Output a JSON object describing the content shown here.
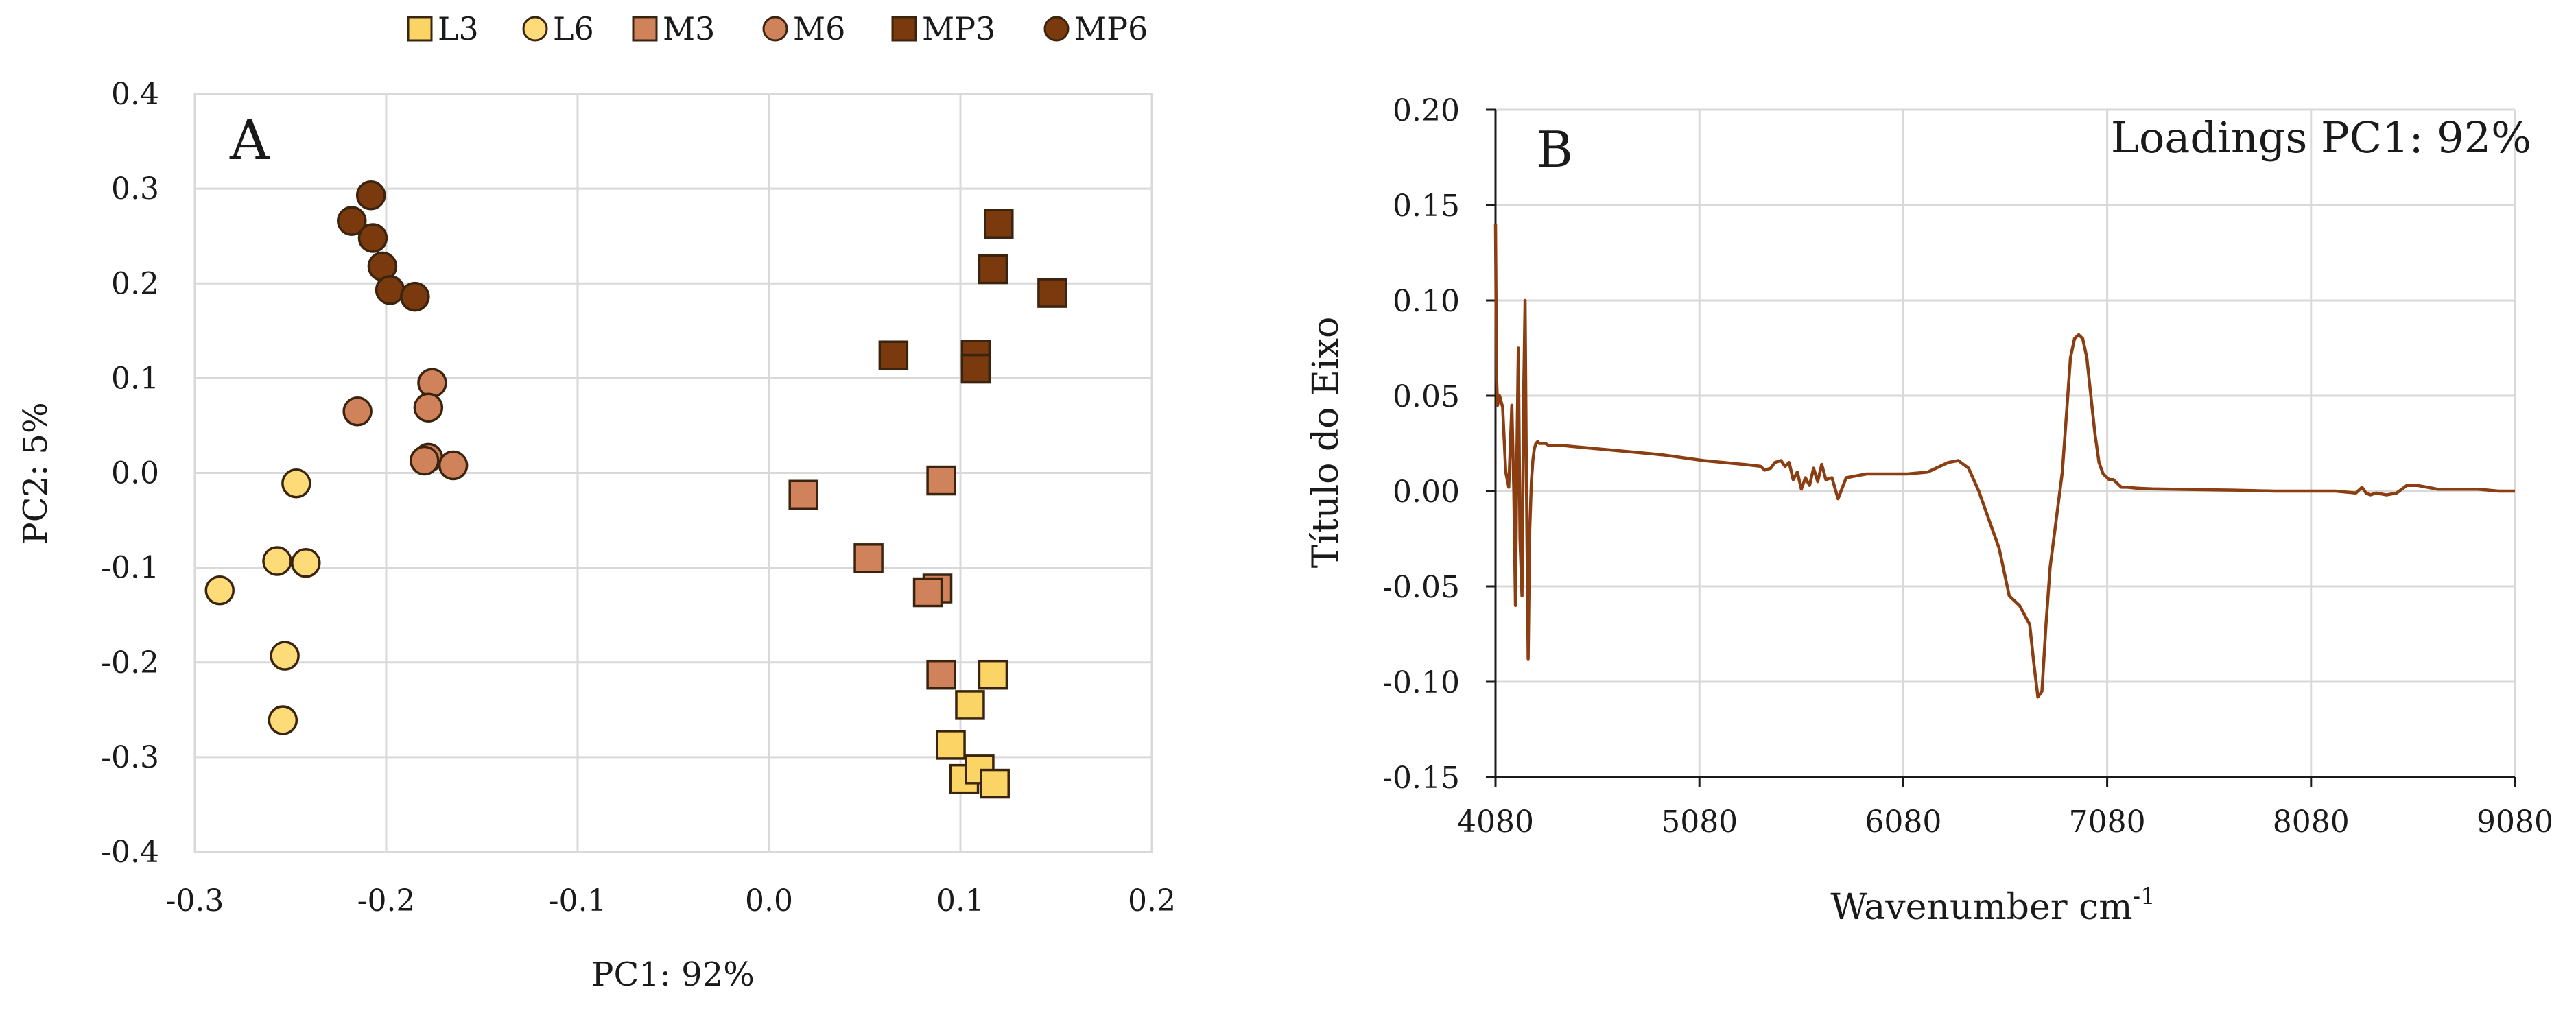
{
  "chart_data": [
    {
      "panel": "A",
      "type": "scatter",
      "xlabel": "PC1: 92%",
      "ylabel": "PC2: 5%",
      "xlim": [
        -0.3,
        0.2
      ],
      "ylim": [
        -0.4,
        0.4
      ],
      "xticks": [
        -0.3,
        -0.2,
        -0.1,
        0.0,
        0.1,
        0.2
      ],
      "yticks": [
        0.4,
        0.3,
        0.2,
        0.1,
        0.0,
        -0.1,
        -0.2,
        -0.3,
        -0.4
      ],
      "xtick_labels": [
        "-0.3",
        "-0.2",
        "-0.1",
        "0.0",
        "0.1",
        "0.2"
      ],
      "ytick_labels": [
        "0.4",
        "0.3",
        "0.2",
        "0.1",
        "0.0",
        "-0.1",
        "-0.2",
        "-0.3",
        "-0.4"
      ],
      "grid": true,
      "legend_position": "top",
      "series": [
        {
          "name": "L3",
          "marker": "square",
          "color": "#FAD464",
          "points": [
            [
              0.095,
              -0.287
            ],
            [
              0.102,
              -0.323
            ],
            [
              0.11,
              -0.313
            ],
            [
              0.118,
              -0.328
            ],
            [
              0.105,
              -0.245
            ],
            [
              0.117,
              -0.213
            ]
          ]
        },
        {
          "name": "L6",
          "marker": "circle",
          "color": "#FCDB78",
          "points": [
            [
              -0.247,
              -0.011
            ],
            [
              -0.257,
              -0.093
            ],
            [
              -0.242,
              -0.095
            ],
            [
              -0.287,
              -0.124
            ],
            [
              -0.253,
              -0.193
            ],
            [
              -0.254,
              -0.261
            ]
          ]
        },
        {
          "name": "M3",
          "marker": "square",
          "color": "#D0825A",
          "points": [
            [
              0.018,
              -0.023
            ],
            [
              0.09,
              -0.008
            ],
            [
              0.052,
              -0.09
            ],
            [
              0.088,
              -0.122
            ],
            [
              0.083,
              -0.126
            ],
            [
              0.09,
              -0.213
            ]
          ]
        },
        {
          "name": "M6",
          "marker": "circle",
          "color": "#D0825A",
          "points": [
            [
              -0.215,
              0.065
            ],
            [
              -0.176,
              0.095
            ],
            [
              -0.178,
              0.069
            ],
            [
              -0.178,
              0.016
            ],
            [
              -0.165,
              0.008
            ],
            [
              -0.18,
              0.013
            ]
          ]
        },
        {
          "name": "MP3",
          "marker": "square",
          "color": "#7A3A0E",
          "points": [
            [
              0.12,
              0.263
            ],
            [
              0.117,
              0.215
            ],
            [
              0.148,
              0.19
            ],
            [
              0.065,
              0.124
            ],
            [
              0.108,
              0.125
            ],
            [
              0.108,
              0.11
            ]
          ]
        },
        {
          "name": "MP6",
          "marker": "circle",
          "color": "#7A3A0E",
          "points": [
            [
              -0.208,
              0.293
            ],
            [
              -0.218,
              0.266
            ],
            [
              -0.207,
              0.248
            ],
            [
              -0.202,
              0.218
            ],
            [
              -0.198,
              0.193
            ],
            [
              -0.185,
              0.186
            ]
          ]
        }
      ]
    },
    {
      "panel": "B",
      "type": "line",
      "xlabel": "Wavenumber cm",
      "xlabel_sup": "-1",
      "ylabel": "Título do Eixo",
      "annotation": "Loadings  PC1: 92%",
      "xlim": [
        4080,
        9080
      ],
      "ylim": [
        -0.15,
        0.2
      ],
      "xticks": [
        4080,
        5080,
        6080,
        7080,
        8080,
        9080
      ],
      "yticks": [
        0.2,
        0.15,
        0.1,
        0.05,
        0.0,
        -0.05,
        -0.1,
        -0.15
      ],
      "xtick_labels": [
        "4080",
        "5080",
        "6080",
        "7080",
        "8080",
        "9080"
      ],
      "ytick_labels": [
        "0.20",
        "0.15",
        "0.10",
        "0.05",
        "0.00",
        "-0.05",
        "-0.10",
        "-0.15"
      ],
      "grid": true,
      "color": "#8B3E11",
      "series": [
        {
          "name": "Loadings PC1",
          "x": [
            4080,
            4085,
            4090,
            4100,
            4115,
            4130,
            4145,
            4160,
            4170,
            4178,
            4185,
            4192,
            4200,
            4210,
            4218,
            4225,
            4232,
            4240,
            4248,
            4256,
            4263,
            4270,
            4278,
            4287,
            4294,
            4300,
            4308,
            4315,
            4325,
            4340,
            4360,
            4400,
            4500,
            4700,
            4900,
            5100,
            5300,
            5380,
            5400,
            5430,
            5450,
            5480,
            5500,
            5520,
            5540,
            5560,
            5580,
            5600,
            5620,
            5640,
            5660,
            5680,
            5700,
            5730,
            5760,
            5800,
            5900,
            6000,
            6100,
            6200,
            6300,
            6350,
            6400,
            6450,
            6500,
            6550,
            6600,
            6650,
            6700,
            6720,
            6740,
            6760,
            6780,
            6800,
            6830,
            6860,
            6880,
            6900,
            6920,
            6940,
            6960,
            6980,
            7000,
            7020,
            7040,
            7060,
            7080,
            7090,
            7100,
            7110,
            7120,
            7130,
            7140,
            7150,
            7160,
            7180,
            7200,
            7220,
            7250,
            7300,
            7400,
            7500,
            7700,
            7900,
            8100,
            8200,
            8300,
            8330,
            8350,
            8370,
            8400,
            8450,
            8500,
            8550,
            8600,
            8650,
            8700,
            8800,
            8900,
            9000,
            9080
          ],
          "y": [
            0.14,
            0.06,
            0.045,
            0.05,
            0.044,
            0.01,
            0.002,
            0.045,
            0.0,
            -0.06,
            0.02,
            0.075,
            -0.025,
            -0.055,
            0.05,
            0.1,
            0.0,
            -0.088,
            -0.02,
            0.005,
            0.016,
            0.022,
            0.025,
            0.026,
            0.025,
            0.025,
            0.025,
            0.025,
            0.025,
            0.024,
            0.024,
            0.024,
            0.023,
            0.021,
            0.019,
            0.016,
            0.014,
            0.013,
            0.011,
            0.012,
            0.015,
            0.016,
            0.013,
            0.015,
            0.006,
            0.01,
            0.001,
            0.007,
            0.003,
            0.012,
            0.005,
            0.014,
            0.006,
            0.007,
            -0.004,
            0.007,
            0.009,
            0.009,
            0.009,
            0.01,
            0.015,
            0.016,
            0.012,
            0.0,
            -0.015,
            -0.03,
            -0.055,
            -0.06,
            -0.07,
            -0.09,
            -0.108,
            -0.105,
            -0.07,
            -0.04,
            -0.015,
            0.01,
            0.04,
            0.07,
            0.08,
            0.082,
            0.08,
            0.07,
            0.05,
            0.03,
            0.015,
            0.009,
            0.007,
            0.006,
            0.006,
            0.006,
            0.005,
            0.004,
            0.003,
            0.002,
            0.002,
            0.002,
            0.0018,
            0.0016,
            0.0014,
            0.0012,
            0.001,
            0.0008,
            0.0005,
            0.0,
            0.0,
            0.0,
            -0.001,
            0.002,
            -0.001,
            -0.002,
            -0.001,
            -0.002,
            -0.001,
            0.003,
            0.003,
            0.002,
            0.001,
            0.001,
            0.001,
            0.0,
            0.0
          ]
        }
      ]
    }
  ],
  "panel_a": {
    "letter": "A"
  },
  "panel_b": {
    "letter": "B"
  },
  "legend": [
    {
      "label": "L3",
      "marker": "square",
      "color": "#FAD464"
    },
    {
      "label": "L6",
      "marker": "circle",
      "color": "#FCDB78"
    },
    {
      "label": "M3",
      "marker": "square",
      "color": "#D0825A"
    },
    {
      "label": "M6",
      "marker": "circle",
      "color": "#D0825A"
    },
    {
      "label": "MP3",
      "marker": "square",
      "color": "#7A3A0E"
    },
    {
      "label": "MP6",
      "marker": "circle",
      "color": "#7A3A0E"
    }
  ]
}
